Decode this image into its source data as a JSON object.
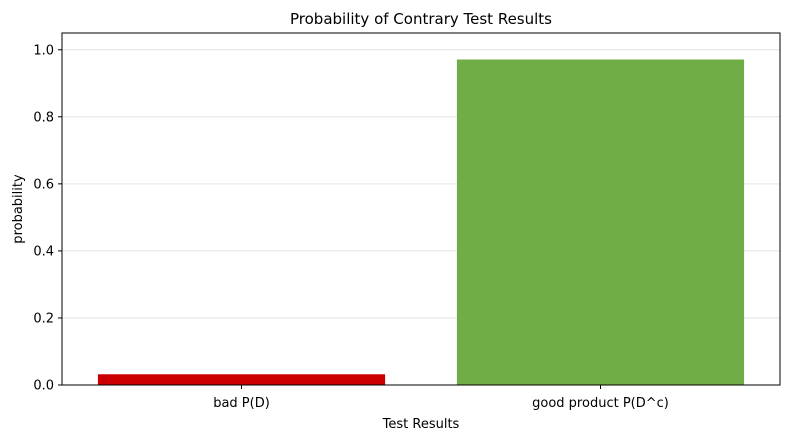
{
  "chart_data": {
    "type": "bar",
    "title": "Probability of Contrary Test Results",
    "xlabel": "Test Results",
    "ylabel": "probability",
    "categories": [
      "bad P(D)",
      "good product P(D^c)"
    ],
    "values": [
      0.032,
      0.971
    ],
    "colors": [
      "#cc0000",
      "#71ad47"
    ],
    "ylim": [
      0,
      1.05
    ],
    "yticks": [
      "0.0",
      "0.2",
      "0.4",
      "0.6",
      "0.8",
      "1.0"
    ],
    "grid": "horizontal",
    "legend": "none"
  }
}
